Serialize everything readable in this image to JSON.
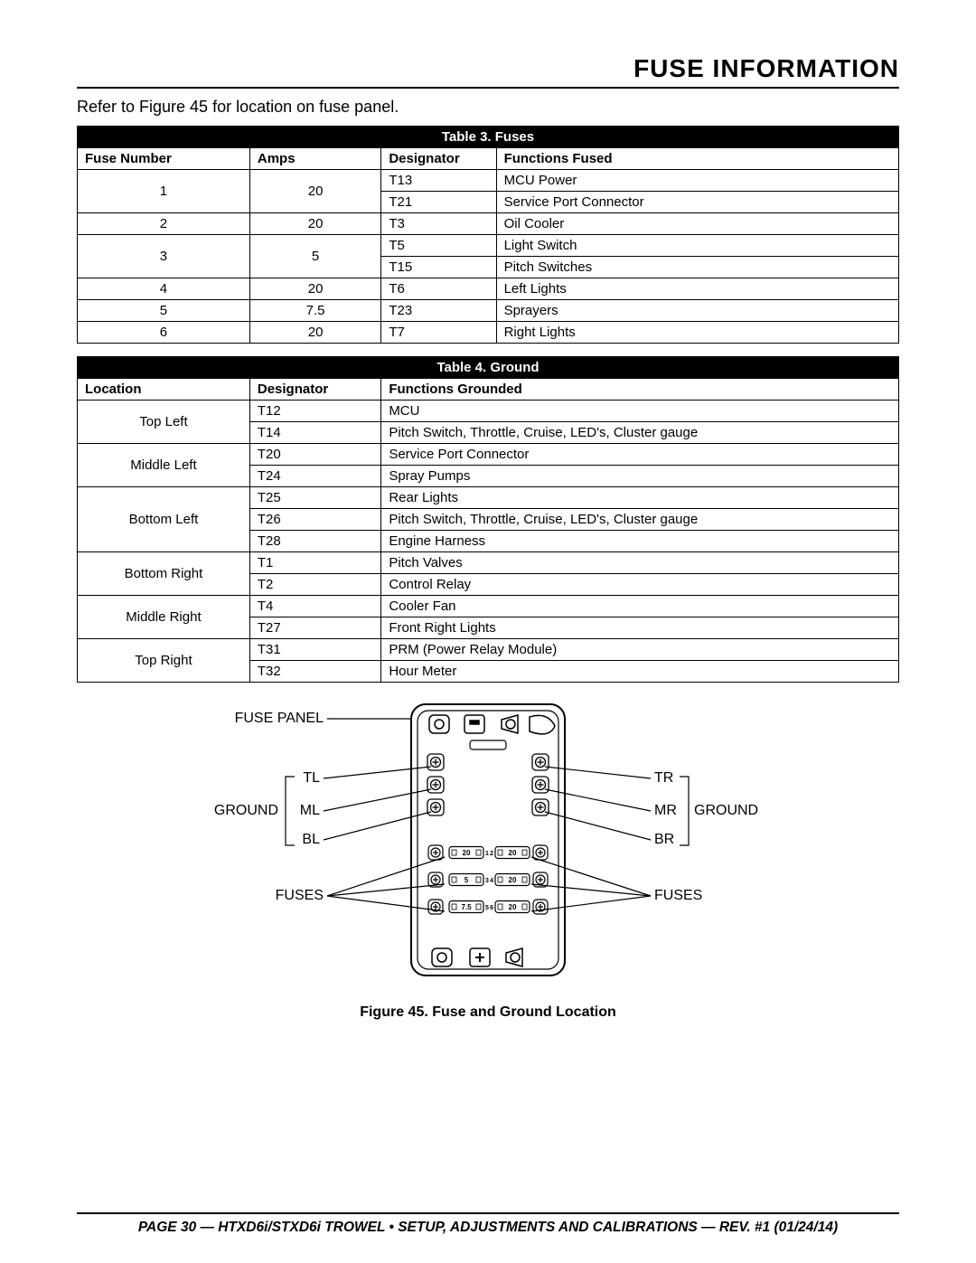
{
  "heading": "FUSE INFORMATION",
  "intro": "Refer to Figure 45 for location on fuse panel.",
  "fuses_table": {
    "title": "Table 3. Fuses",
    "headers": [
      "Fuse Number",
      "Amps",
      "Designator",
      "Functions Fused"
    ],
    "rows": [
      {
        "num": "1",
        "amps": "20",
        "des": [
          "T13",
          "T21"
        ],
        "fn": [
          "MCU Power",
          "Service Port Connector"
        ]
      },
      {
        "num": "2",
        "amps": "20",
        "des": [
          "T3"
        ],
        "fn": [
          "Oil Cooler"
        ]
      },
      {
        "num": "3",
        "amps": "5",
        "des": [
          "T5",
          "T15"
        ],
        "fn": [
          "Light Switch",
          "Pitch Switches"
        ]
      },
      {
        "num": "4",
        "amps": "20",
        "des": [
          "T6"
        ],
        "fn": [
          "Left Lights"
        ]
      },
      {
        "num": "5",
        "amps": "7.5",
        "des": [
          "T23"
        ],
        "fn": [
          "Sprayers"
        ]
      },
      {
        "num": "6",
        "amps": "20",
        "des": [
          "T7"
        ],
        "fn": [
          "Right Lights"
        ]
      }
    ]
  },
  "ground_table": {
    "title": "Table 4. Ground",
    "headers": [
      "Location",
      "Designator",
      "Functions Grounded"
    ],
    "rows": [
      {
        "loc": "Top Left",
        "des": [
          "T12",
          "T14"
        ],
        "fn": [
          "MCU",
          "Pitch Switch, Throttle, Cruise, LED's, Cluster gauge"
        ]
      },
      {
        "loc": "Middle Left",
        "des": [
          "T20",
          "T24"
        ],
        "fn": [
          "Service Port Connector",
          "Spray Pumps"
        ]
      },
      {
        "loc": "Bottom Left",
        "des": [
          "T25",
          "T26",
          "T28"
        ],
        "fn": [
          "Rear Lights",
          "Pitch Switch, Throttle, Cruise, LED's, Cluster gauge",
          "Engine Harness"
        ]
      },
      {
        "loc": "Bottom Right",
        "des": [
          "T1",
          "T2"
        ],
        "fn": [
          "Pitch Valves",
          "Control Relay"
        ]
      },
      {
        "loc": "Middle Right",
        "des": [
          "T4",
          "T27"
        ],
        "fn": [
          "Cooler Fan",
          "Front Right Lights"
        ]
      },
      {
        "loc": "Top Right",
        "des": [
          "T31",
          "T32"
        ],
        "fn": [
          "PRM (Power Relay Module)",
          "Hour Meter"
        ]
      }
    ]
  },
  "figure": {
    "caption": "Figure 45. Fuse and Ground Location",
    "labels": {
      "panel": "FUSE PANEL",
      "ground_l": "GROUND",
      "ground_r": "GROUND",
      "fuses_l": "FUSES",
      "fuses_r": "FUSES",
      "tl": "TL",
      "ml": "ML",
      "bl": "BL",
      "tr": "TR",
      "mr": "MR",
      "br": "BR"
    },
    "fuse_values": {
      "f1": "20",
      "f2": "20",
      "f3": "5",
      "f4": "20",
      "f5": "7.5",
      "f6": "20"
    },
    "fuse_nums": {
      "n1": "1",
      "n2": "2",
      "n3": "3",
      "n4": "4",
      "n5": "5",
      "n6": "6"
    }
  },
  "footer": "PAGE 30 — HTXD6i/STXD6i TROWEL • SETUP, ADJUSTMENTS AND CALIBRATIONS — REV. #1 (01/24/14)",
  "style": {
    "heading_color": "#000000",
    "title_row_bg": "#000000",
    "title_row_fg": "#ffffff",
    "border_color": "#000000",
    "svg_stroke": "#000000",
    "svg_fill": "#ffffff"
  }
}
